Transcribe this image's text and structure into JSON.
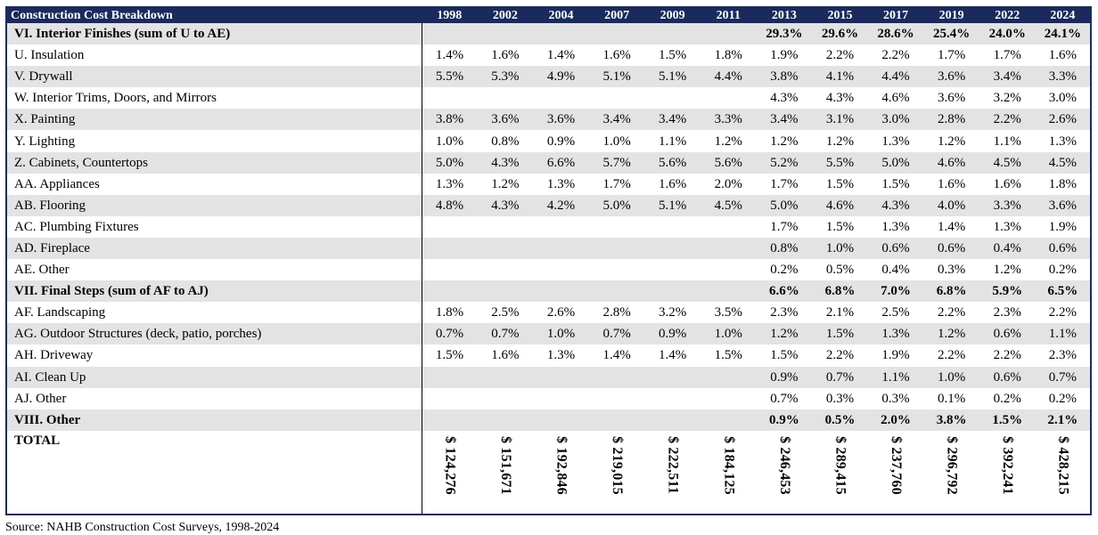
{
  "header": {
    "title": "Construction Cost Breakdown",
    "years": [
      "1998",
      "2002",
      "2004",
      "2007",
      "2009",
      "2011",
      "2013",
      "2015",
      "2017",
      "2019",
      "2022",
      "2024"
    ]
  },
  "rows": [
    {
      "label": "VI. Interior Finishes (sum of U to AE)",
      "bold": true,
      "stripe": true,
      "values": [
        "",
        "",
        "",
        "",
        "",
        "",
        "29.3%",
        "29.6%",
        "28.6%",
        "25.4%",
        "24.0%",
        "24.1%"
      ]
    },
    {
      "label": "U. Insulation",
      "bold": false,
      "stripe": false,
      "values": [
        "1.4%",
        "1.6%",
        "1.4%",
        "1.6%",
        "1.5%",
        "1.8%",
        "1.9%",
        "2.2%",
        "2.2%",
        "1.7%",
        "1.7%",
        "1.6%"
      ]
    },
    {
      "label": "V. Drywall",
      "bold": false,
      "stripe": true,
      "values": [
        "5.5%",
        "5.3%",
        "4.9%",
        "5.1%",
        "5.1%",
        "4.4%",
        "3.8%",
        "4.1%",
        "4.4%",
        "3.6%",
        "3.4%",
        "3.3%"
      ]
    },
    {
      "label": "W. Interior Trims, Doors, and Mirrors",
      "bold": false,
      "stripe": false,
      "values": [
        "",
        "",
        "",
        "",
        "",
        "",
        "4.3%",
        "4.3%",
        "4.6%",
        "3.6%",
        "3.2%",
        "3.0%"
      ]
    },
    {
      "label": "X. Painting",
      "bold": false,
      "stripe": true,
      "values": [
        "3.8%",
        "3.6%",
        "3.6%",
        "3.4%",
        "3.4%",
        "3.3%",
        "3.4%",
        "3.1%",
        "3.0%",
        "2.8%",
        "2.2%",
        "2.6%"
      ]
    },
    {
      "label": "Y. Lighting",
      "bold": false,
      "stripe": false,
      "values": [
        "1.0%",
        "0.8%",
        "0.9%",
        "1.0%",
        "1.1%",
        "1.2%",
        "1.2%",
        "1.2%",
        "1.3%",
        "1.2%",
        "1.1%",
        "1.3%"
      ]
    },
    {
      "label": "Z. Cabinets, Countertops",
      "bold": false,
      "stripe": true,
      "values": [
        "5.0%",
        "4.3%",
        "6.6%",
        "5.7%",
        "5.6%",
        "5.6%",
        "5.2%",
        "5.5%",
        "5.0%",
        "4.6%",
        "4.5%",
        "4.5%"
      ]
    },
    {
      "label": "AA. Appliances",
      "bold": false,
      "stripe": false,
      "values": [
        "1.3%",
        "1.2%",
        "1.3%",
        "1.7%",
        "1.6%",
        "2.0%",
        "1.7%",
        "1.5%",
        "1.5%",
        "1.6%",
        "1.6%",
        "1.8%"
      ]
    },
    {
      "label": "AB. Flooring",
      "bold": false,
      "stripe": true,
      "values": [
        "4.8%",
        "4.3%",
        "4.2%",
        "5.0%",
        "5.1%",
        "4.5%",
        "5.0%",
        "4.6%",
        "4.3%",
        "4.0%",
        "3.3%",
        "3.6%"
      ]
    },
    {
      "label": "AC. Plumbing Fixtures",
      "bold": false,
      "stripe": false,
      "values": [
        "",
        "",
        "",
        "",
        "",
        "",
        "1.7%",
        "1.5%",
        "1.3%",
        "1.4%",
        "1.3%",
        "1.9%"
      ]
    },
    {
      "label": "AD. Fireplace",
      "bold": false,
      "stripe": true,
      "values": [
        "",
        "",
        "",
        "",
        "",
        "",
        "0.8%",
        "1.0%",
        "0.6%",
        "0.6%",
        "0.4%",
        "0.6%"
      ]
    },
    {
      "label": "AE. Other",
      "bold": false,
      "stripe": false,
      "values": [
        "",
        "",
        "",
        "",
        "",
        "",
        "0.2%",
        "0.5%",
        "0.4%",
        "0.3%",
        "1.2%",
        "0.2%"
      ]
    },
    {
      "label": "VII. Final Steps (sum of AF to AJ)",
      "bold": true,
      "stripe": true,
      "values": [
        "",
        "",
        "",
        "",
        "",
        "",
        "6.6%",
        "6.8%",
        "7.0%",
        "6.8%",
        "5.9%",
        "6.5%"
      ]
    },
    {
      "label": "AF. Landscaping",
      "bold": false,
      "stripe": false,
      "values": [
        "1.8%",
        "2.5%",
        "2.6%",
        "2.8%",
        "3.2%",
        "3.5%",
        "2.3%",
        "2.1%",
        "2.5%",
        "2.2%",
        "2.3%",
        "2.2%"
      ]
    },
    {
      "label": "AG. Outdoor Structures (deck, patio, porches)",
      "bold": false,
      "stripe": true,
      "values": [
        "0.7%",
        "0.7%",
        "1.0%",
        "0.7%",
        "0.9%",
        "1.0%",
        "1.2%",
        "1.5%",
        "1.3%",
        "1.2%",
        "0.6%",
        "1.1%"
      ]
    },
    {
      "label": "AH. Driveway",
      "bold": false,
      "stripe": false,
      "values": [
        "1.5%",
        "1.6%",
        "1.3%",
        "1.4%",
        "1.4%",
        "1.5%",
        "1.5%",
        "2.2%",
        "1.9%",
        "2.2%",
        "2.2%",
        "2.3%"
      ]
    },
    {
      "label": "AI. Clean Up",
      "bold": false,
      "stripe": true,
      "values": [
        "",
        "",
        "",
        "",
        "",
        "",
        "0.9%",
        "0.7%",
        "1.1%",
        "1.0%",
        "0.6%",
        "0.7%"
      ]
    },
    {
      "label": "AJ. Other",
      "bold": false,
      "stripe": false,
      "values": [
        "",
        "",
        "",
        "",
        "",
        "",
        "0.7%",
        "0.3%",
        "0.3%",
        "0.1%",
        "0.2%",
        "0.2%"
      ]
    },
    {
      "label": "VIII. Other",
      "bold": true,
      "stripe": true,
      "values": [
        "",
        "",
        "",
        "",
        "",
        "",
        "0.9%",
        "0.5%",
        "2.0%",
        "3.8%",
        "1.5%",
        "2.1%"
      ]
    }
  ],
  "total": {
    "label": "TOTAL",
    "values": [
      "$ 124,276",
      "$ 151,671",
      "$ 192,846",
      "$ 219,015",
      "$ 222,511",
      "$ 184,125",
      "$ 246,453",
      "$ 289,415",
      "$ 237,760",
      "$ 296,792",
      "$ 392,241",
      "$ 428,215"
    ]
  },
  "source": "Source: NAHB Construction Cost Surveys, 1998-2024"
}
